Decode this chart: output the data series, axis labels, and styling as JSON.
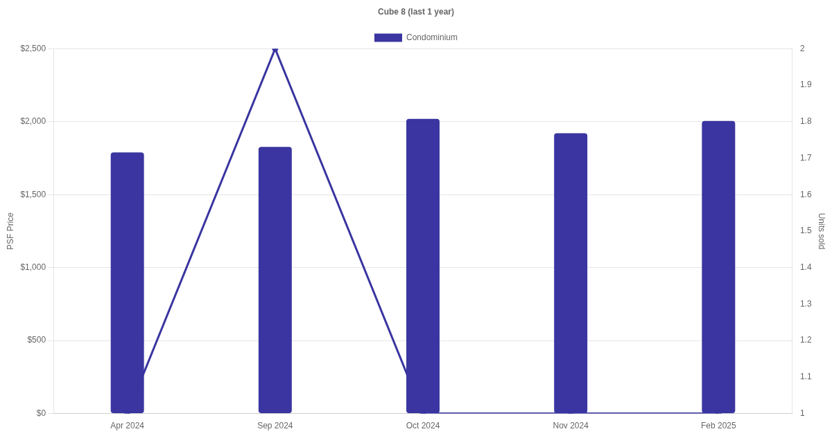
{
  "chart_data": {
    "type": "bar",
    "title": "Cube 8 (last 1 year)",
    "ylabel": "PSF Price",
    "y2label": "Units sold",
    "categories": [
      "Apr 2024",
      "Sep 2024",
      "Oct 2024",
      "Nov 2024",
      "Feb 2025"
    ],
    "series": [
      {
        "name": "Condominium",
        "color": "#3a35a0",
        "values": [
          1790,
          1827,
          2019,
          1921,
          2005
        ]
      },
      {
        "type": "line",
        "axis": "y2",
        "color": "#3a35a0",
        "marker": "circle",
        "line_style": "solid",
        "values": [
          1,
          2,
          1,
          1,
          1
        ]
      }
    ],
    "ylim": [
      0,
      2500
    ],
    "yticks": [
      {
        "value": 0,
        "label": "$0"
      },
      {
        "value": 500,
        "label": "$500"
      },
      {
        "value": 1000,
        "label": "$1,000"
      },
      {
        "value": 1500,
        "label": "$1,500"
      },
      {
        "value": 2000,
        "label": "$2,000"
      },
      {
        "value": 2500,
        "label": "$2,500"
      }
    ],
    "y2lim": [
      1,
      2
    ],
    "y2ticks": [
      1,
      1.1,
      1.2,
      1.3,
      1.4,
      1.5,
      1.6,
      1.7,
      1.8,
      1.9,
      2
    ],
    "grid": "y",
    "legend": "top"
  }
}
